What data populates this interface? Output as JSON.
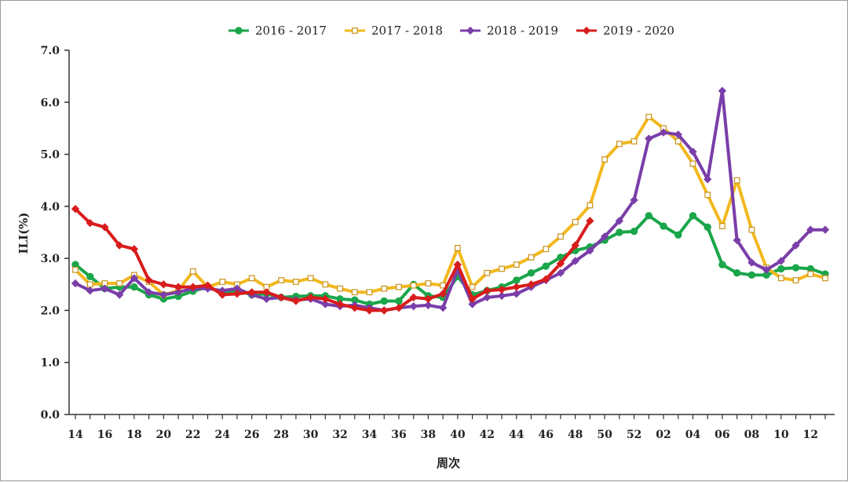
{
  "chart_data": {
    "type": "line",
    "title": "",
    "xlabel": "周次",
    "ylabel": "ILI(%)",
    "ylim": [
      0,
      7
    ],
    "yticks": [
      "0.0",
      "1.0",
      "2.0",
      "3.0",
      "4.0",
      "5.0",
      "6.0",
      "7.0"
    ],
    "x_weeks": [
      14,
      15,
      16,
      17,
      18,
      19,
      20,
      21,
      22,
      23,
      24,
      25,
      26,
      27,
      28,
      29,
      30,
      31,
      32,
      33,
      34,
      35,
      36,
      37,
      38,
      39,
      40,
      41,
      42,
      43,
      44,
      45,
      46,
      47,
      48,
      49,
      50,
      51,
      52,
      1,
      2,
      3,
      4,
      5,
      6,
      7,
      8,
      9,
      10,
      11,
      12,
      13
    ],
    "xtick_labels": [
      "14",
      "16",
      "18",
      "20",
      "22",
      "24",
      "26",
      "28",
      "30",
      "32",
      "34",
      "36",
      "38",
      "40",
      "42",
      "44",
      "46",
      "48",
      "50",
      "52",
      "02",
      "04",
      "06",
      "08",
      "10",
      "12"
    ],
    "grid": false,
    "legend_position": "top-center",
    "series": [
      {
        "name": "2016 - 2017",
        "color": "#1aa64a",
        "marker": "circle",
        "values": [
          2.88,
          2.65,
          2.42,
          2.45,
          2.45,
          2.3,
          2.22,
          2.27,
          2.37,
          2.45,
          2.35,
          2.38,
          2.3,
          2.32,
          2.25,
          2.27,
          2.28,
          2.28,
          2.22,
          2.2,
          2.12,
          2.18,
          2.18,
          2.5,
          2.28,
          2.25,
          2.65,
          2.3,
          2.38,
          2.45,
          2.58,
          2.72,
          2.85,
          3.02,
          3.15,
          3.22,
          3.35,
          3.5,
          3.52,
          3.82,
          3.62,
          3.45,
          3.82,
          3.6,
          2.88,
          2.72,
          2.68,
          2.68,
          2.8,
          2.82,
          2.8,
          2.7
        ]
      },
      {
        "name": "2017 - 2018",
        "color": "#f2b81e",
        "marker": "square",
        "values": [
          2.78,
          2.5,
          2.52,
          2.52,
          2.68,
          2.55,
          2.3,
          2.38,
          2.75,
          2.45,
          2.55,
          2.5,
          2.62,
          2.45,
          2.58,
          2.55,
          2.62,
          2.5,
          2.42,
          2.35,
          2.35,
          2.42,
          2.45,
          2.48,
          2.52,
          2.48,
          3.2,
          2.45,
          2.72,
          2.8,
          2.88,
          3.02,
          3.18,
          3.42,
          3.7,
          4.02,
          4.9,
          5.2,
          5.25,
          5.72,
          5.5,
          5.25,
          4.82,
          4.22,
          3.62,
          4.5,
          3.55,
          2.82,
          2.62,
          2.58,
          2.7,
          2.62
        ]
      },
      {
        "name": "2018 - 2019",
        "color": "#7a3ea8",
        "marker": "diamond",
        "values": [
          2.52,
          2.38,
          2.42,
          2.3,
          2.62,
          2.35,
          2.3,
          2.35,
          2.42,
          2.42,
          2.38,
          2.42,
          2.3,
          2.22,
          2.25,
          2.2,
          2.22,
          2.12,
          2.08,
          2.1,
          2.05,
          2.0,
          2.05,
          2.08,
          2.1,
          2.05,
          2.78,
          2.12,
          2.25,
          2.28,
          2.32,
          2.45,
          2.58,
          2.72,
          2.95,
          3.15,
          3.42,
          3.72,
          4.12,
          5.3,
          5.42,
          5.38,
          5.05,
          4.52,
          6.22,
          3.35,
          2.92,
          2.78,
          2.95,
          3.25,
          3.55,
          3.55
        ]
      },
      {
        "name": "2019 - 2020",
        "color": "#d81c1c",
        "marker": "diamond",
        "values": [
          3.95,
          3.68,
          3.6,
          3.25,
          3.18,
          2.58,
          2.5,
          2.45,
          2.45,
          2.48,
          2.3,
          2.32,
          2.35,
          2.35,
          2.25,
          2.18,
          2.25,
          2.22,
          2.12,
          2.05,
          2.0,
          2.0,
          2.05,
          2.25,
          2.22,
          2.32,
          2.88,
          2.22,
          2.38,
          2.4,
          2.45,
          2.5,
          2.6,
          2.9,
          3.25,
          3.72
        ]
      }
    ]
  }
}
